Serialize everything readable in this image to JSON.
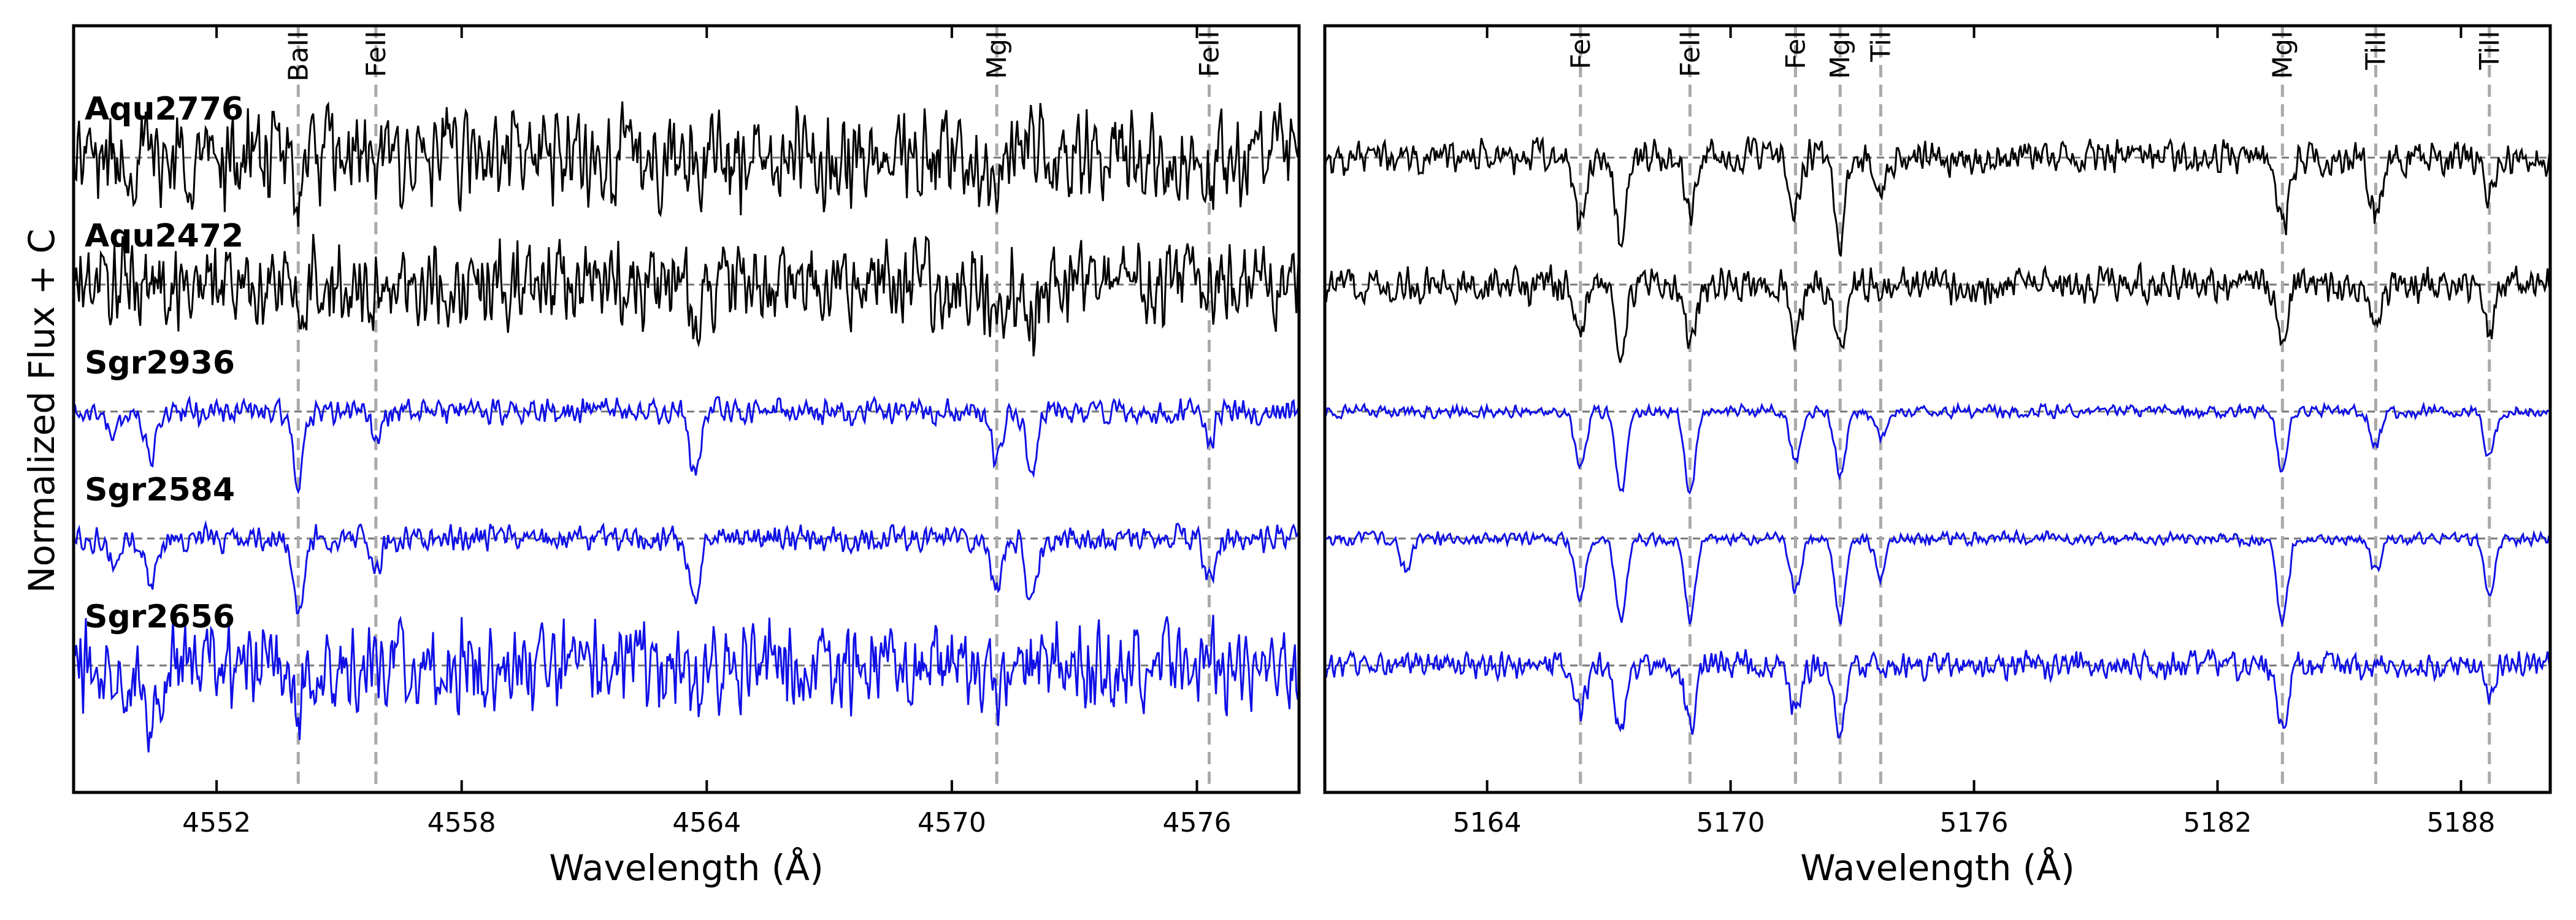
{
  "y_axis_label": "Normalized Flux + C",
  "colors": {
    "sgr": "#1010e6",
    "aqu": "#000000",
    "marker": "#aaaaaa",
    "baseline": "#777777"
  },
  "stars": [
    {
      "name": "Aqu2776",
      "color": "#000000"
    },
    {
      "name": "Aqu2472",
      "color": "#000000"
    },
    {
      "name": "Sgr2936",
      "color": "#1010e6"
    },
    {
      "name": "Sgr2584",
      "color": "#1010e6"
    },
    {
      "name": "Sgr2656",
      "color": "#1010e6"
    }
  ],
  "chart_data": [
    {
      "type": "line",
      "xlabel": "Wavelength (Å)",
      "xlim": [
        4548.5,
        4578.5
      ],
      "x_ticks": [
        "4552",
        "4558",
        "4564",
        "4570",
        "4576"
      ],
      "x_tick_values": [
        4552,
        4558,
        4564,
        4570,
        4576
      ],
      "lines": [
        {
          "label": "BaII",
          "wavelength": 4554.0
        },
        {
          "label": "FeII",
          "wavelength": 4555.9
        },
        {
          "label": "MgI",
          "wavelength": 4571.1
        },
        {
          "label": "FeII",
          "wavelength": 4576.3
        }
      ],
      "series": [
        {
          "name": "Aqu2776",
          "offset": 4,
          "noise": 0.55,
          "depth_scale": 0.6,
          "features": [
            {
              "x": 4554.0,
              "depth": 0.45
            },
            {
              "x": 4555.9,
              "depth": 0.3
            },
            {
              "x": 4571.1,
              "depth": 0.45
            },
            {
              "x": 4576.3,
              "depth": 0.3
            }
          ]
        },
        {
          "name": "Aqu2472",
          "offset": 3,
          "noise": 0.5,
          "depth_scale": 0.6,
          "features": [
            {
              "x": 4554.0,
              "depth": 0.45
            },
            {
              "x": 4555.9,
              "depth": 0.3
            },
            {
              "x": 4563.7,
              "depth": 0.5
            },
            {
              "x": 4571.1,
              "depth": 0.55
            },
            {
              "x": 4572.0,
              "depth": 0.4
            }
          ]
        },
        {
          "name": "Sgr2936",
          "offset": 2,
          "noise": 0.14,
          "depth_scale": 1.0,
          "features": [
            {
              "x": 4549.5,
              "depth": 0.25
            },
            {
              "x": 4550.4,
              "depth": 0.45
            },
            {
              "x": 4554.0,
              "depth": 0.7
            },
            {
              "x": 4555.9,
              "depth": 0.25
            },
            {
              "x": 4563.7,
              "depth": 0.6
            },
            {
              "x": 4571.1,
              "depth": 0.45
            },
            {
              "x": 4571.95,
              "depth": 0.6
            },
            {
              "x": 4576.3,
              "depth": 0.3
            }
          ]
        },
        {
          "name": "Sgr2584",
          "offset": 1,
          "noise": 0.14,
          "depth_scale": 1.0,
          "features": [
            {
              "x": 4549.5,
              "depth": 0.25
            },
            {
              "x": 4550.4,
              "depth": 0.45
            },
            {
              "x": 4554.0,
              "depth": 0.75
            },
            {
              "x": 4555.9,
              "depth": 0.3
            },
            {
              "x": 4563.7,
              "depth": 0.6
            },
            {
              "x": 4571.1,
              "depth": 0.5
            },
            {
              "x": 4571.95,
              "depth": 0.6
            },
            {
              "x": 4576.3,
              "depth": 0.35
            }
          ]
        },
        {
          "name": "Sgr2656",
          "offset": 0,
          "noise": 0.5,
          "depth_scale": 0.8,
          "features": [
            {
              "x": 4550.4,
              "depth": 0.7
            },
            {
              "x": 4554.0,
              "depth": 0.6
            },
            {
              "x": 4563.7,
              "depth": 0.4
            },
            {
              "x": 4571.1,
              "depth": 0.4
            }
          ]
        }
      ]
    },
    {
      "type": "line",
      "xlabel": "Wavelength (Å)",
      "xlim": [
        5160.0,
        5190.2
      ],
      "x_ticks": [
        "5164",
        "5170",
        "5176",
        "5182",
        "5188"
      ],
      "x_tick_values": [
        5164,
        5170,
        5176,
        5182,
        5188
      ],
      "lines": [
        {
          "label": "FeI",
          "wavelength": 5166.3
        },
        {
          "label": "FeII",
          "wavelength": 5169.0
        },
        {
          "label": "FeI",
          "wavelength": 5171.6
        },
        {
          "label": "MgI",
          "wavelength": 5172.7
        },
        {
          "label": "TiI",
          "wavelength": 5173.7
        },
        {
          "label": "MgI",
          "wavelength": 5183.6
        },
        {
          "label": "TiII",
          "wavelength": 5185.9
        },
        {
          "label": "TiII",
          "wavelength": 5188.7
        }
      ],
      "series": [
        {
          "name": "Aqu2776",
          "offset": 4,
          "noise": 0.2,
          "depth_scale": 0.9,
          "features": [
            {
              "x": 5166.3,
              "depth": 0.75
            },
            {
              "x": 5167.3,
              "depth": 0.9
            },
            {
              "x": 5169.0,
              "depth": 0.55
            },
            {
              "x": 5171.6,
              "depth": 0.55
            },
            {
              "x": 5172.7,
              "depth": 0.9
            },
            {
              "x": 5173.7,
              "depth": 0.35
            },
            {
              "x": 5183.6,
              "depth": 0.75
            },
            {
              "x": 5185.9,
              "depth": 0.6
            },
            {
              "x": 5188.7,
              "depth": 0.4
            }
          ]
        },
        {
          "name": "Aqu2472",
          "offset": 3,
          "noise": 0.2,
          "depth_scale": 0.9,
          "features": [
            {
              "x": 5166.3,
              "depth": 0.5
            },
            {
              "x": 5167.3,
              "depth": 0.8
            },
            {
              "x": 5169.0,
              "depth": 0.7
            },
            {
              "x": 5171.6,
              "depth": 0.5
            },
            {
              "x": 5172.7,
              "depth": 0.7
            },
            {
              "x": 5183.6,
              "depth": 0.55
            },
            {
              "x": 5185.9,
              "depth": 0.5
            },
            {
              "x": 5188.7,
              "depth": 0.5
            }
          ]
        },
        {
          "name": "Sgr2936",
          "offset": 2,
          "noise": 0.07,
          "depth_scale": 1.0,
          "features": [
            {
              "x": 5166.3,
              "depth": 0.55
            },
            {
              "x": 5167.3,
              "depth": 0.75
            },
            {
              "x": 5169.0,
              "depth": 0.75
            },
            {
              "x": 5171.6,
              "depth": 0.45
            },
            {
              "x": 5172.7,
              "depth": 0.6
            },
            {
              "x": 5173.7,
              "depth": 0.25
            },
            {
              "x": 5183.6,
              "depth": 0.55
            },
            {
              "x": 5185.9,
              "depth": 0.3
            },
            {
              "x": 5188.7,
              "depth": 0.45
            }
          ]
        },
        {
          "name": "Sgr2584",
          "offset": 1,
          "noise": 0.07,
          "depth_scale": 1.0,
          "features": [
            {
              "x": 5162.0,
              "depth": 0.3
            },
            {
              "x": 5166.3,
              "depth": 0.55
            },
            {
              "x": 5167.3,
              "depth": 0.75
            },
            {
              "x": 5169.0,
              "depth": 0.75
            },
            {
              "x": 5171.6,
              "depth": 0.5
            },
            {
              "x": 5172.7,
              "depth": 0.75
            },
            {
              "x": 5173.7,
              "depth": 0.35
            },
            {
              "x": 5183.6,
              "depth": 0.8
            },
            {
              "x": 5185.9,
              "depth": 0.3
            },
            {
              "x": 5188.7,
              "depth": 0.5
            }
          ]
        },
        {
          "name": "Sgr2656",
          "offset": 0,
          "noise": 0.16,
          "depth_scale": 1.0,
          "features": [
            {
              "x": 5166.3,
              "depth": 0.45
            },
            {
              "x": 5167.3,
              "depth": 0.65
            },
            {
              "x": 5169.0,
              "depth": 0.6
            },
            {
              "x": 5171.6,
              "depth": 0.4
            },
            {
              "x": 5172.7,
              "depth": 0.65
            },
            {
              "x": 5183.6,
              "depth": 0.55
            },
            {
              "x": 5188.7,
              "depth": 0.3
            }
          ]
        }
      ]
    }
  ]
}
